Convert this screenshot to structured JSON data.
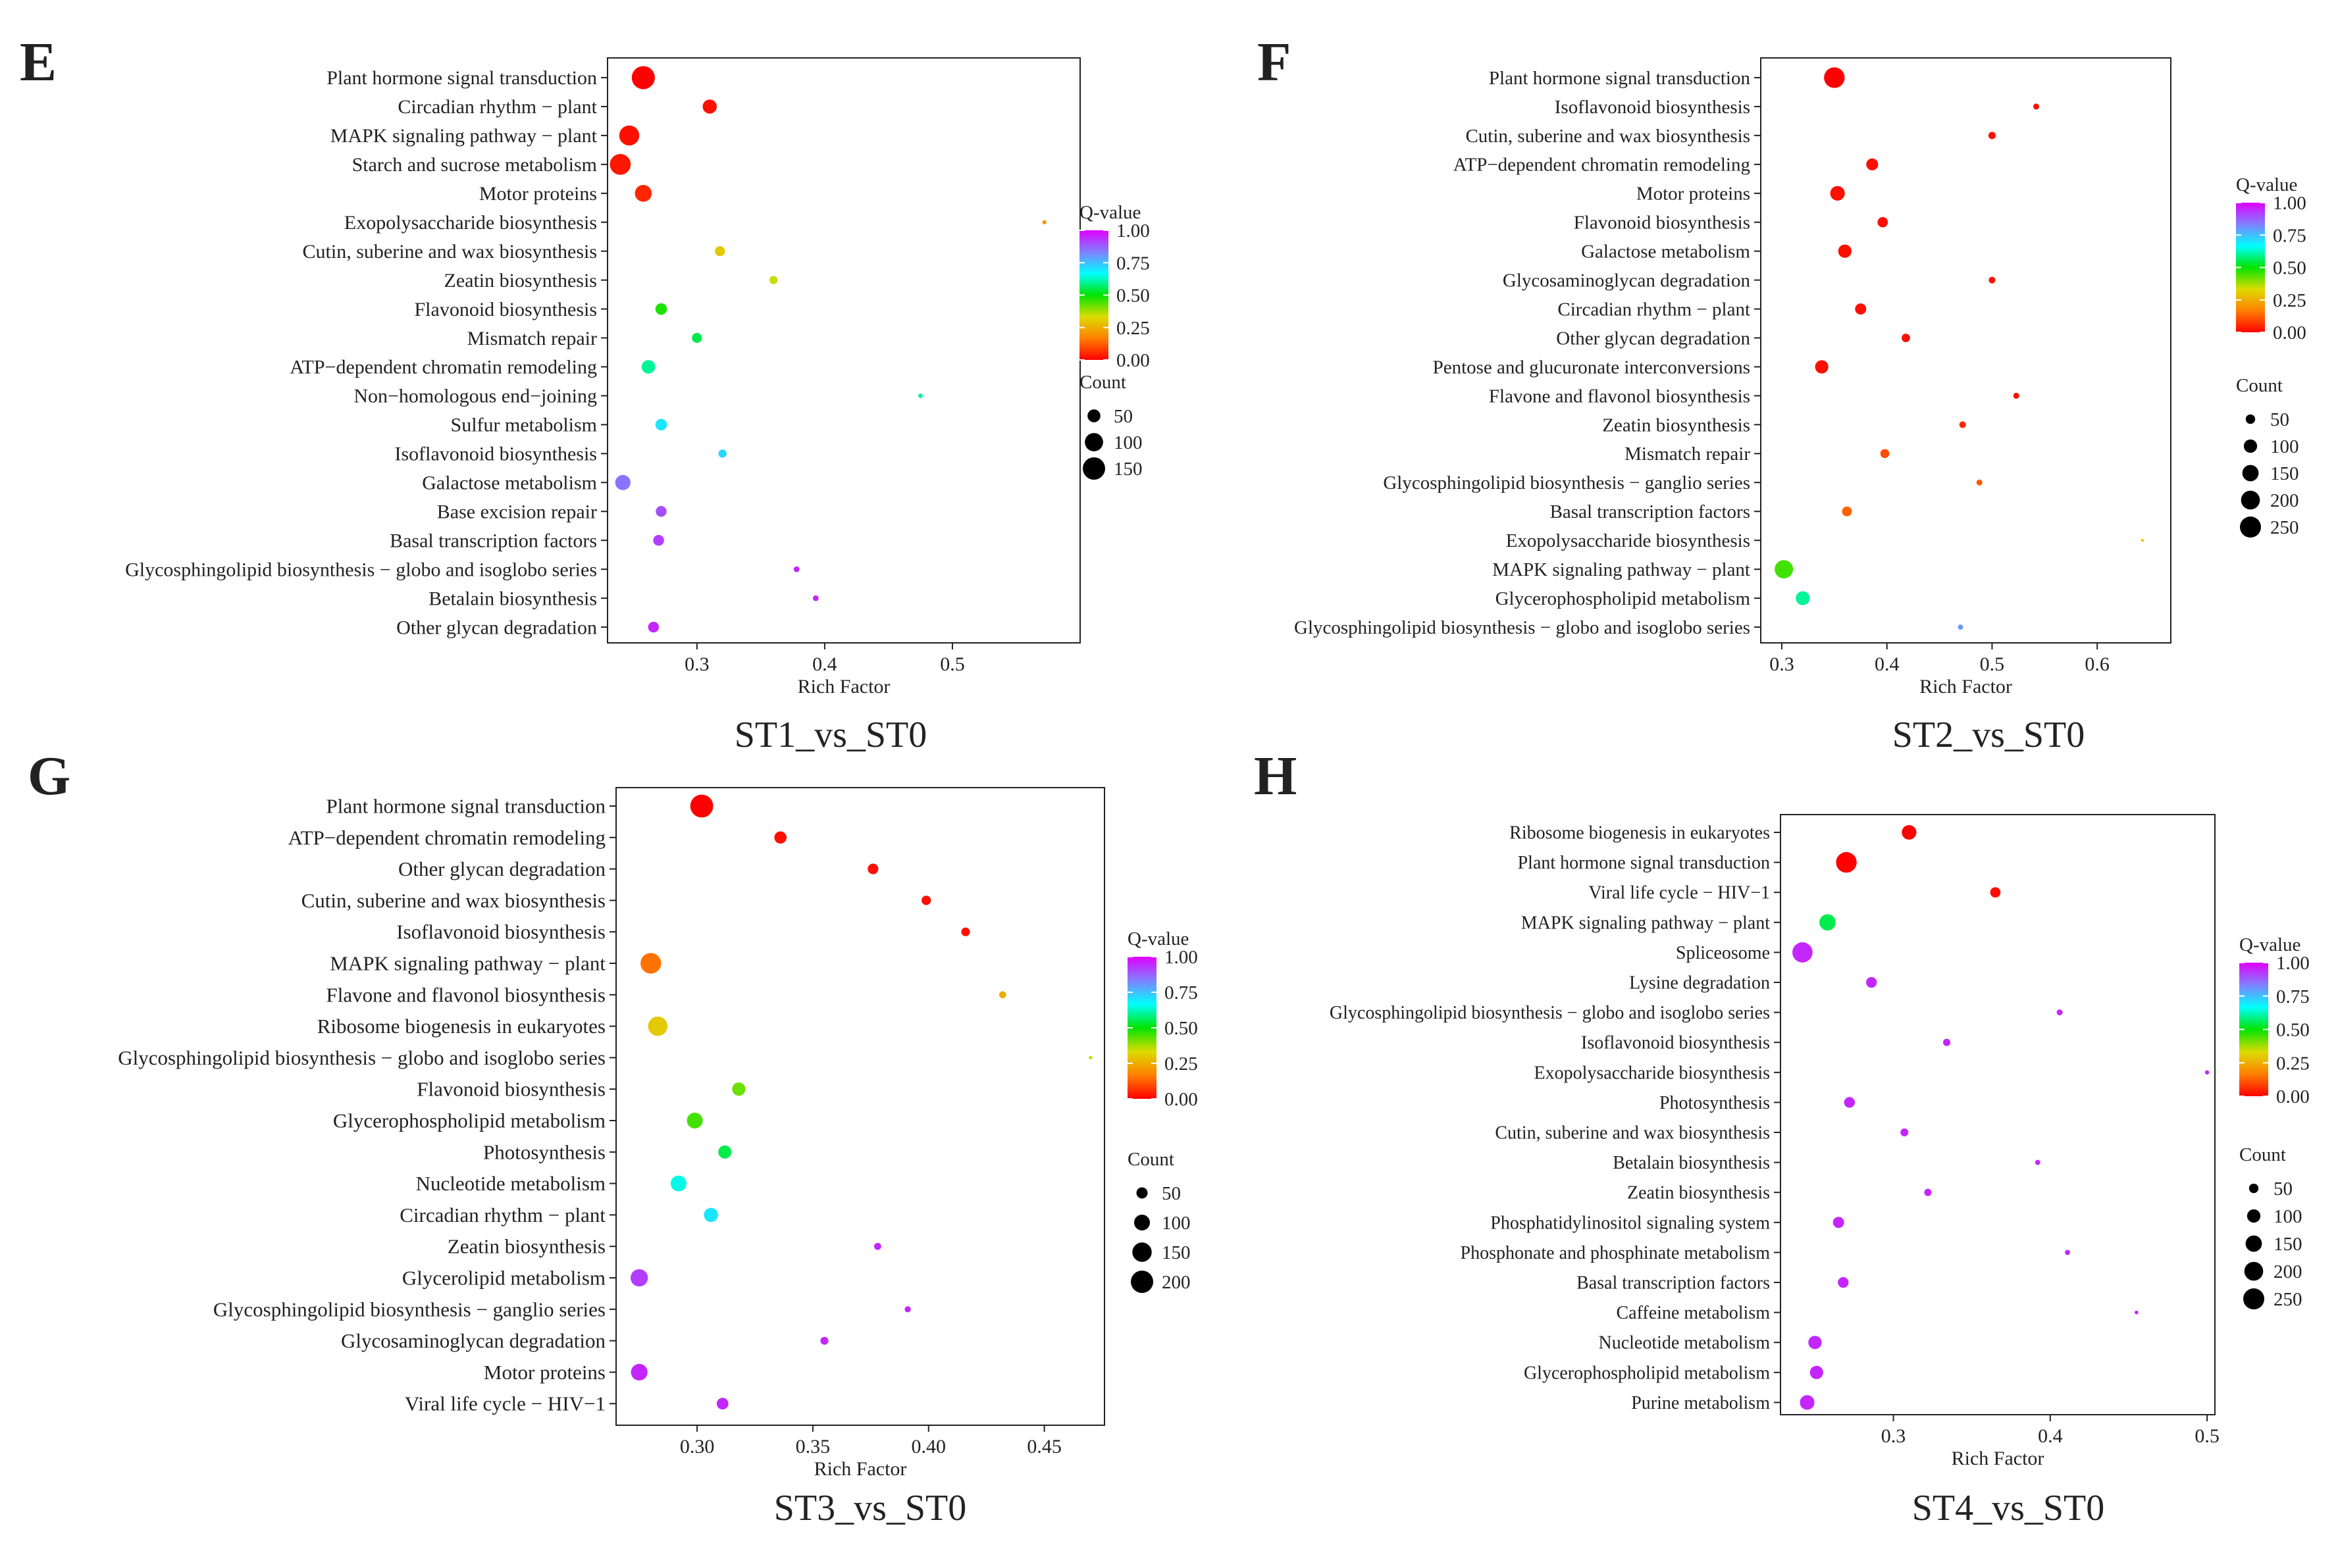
{
  "colors": {
    "scale": [
      "#ff0000",
      "#ff7f00",
      "#dcdc00",
      "#00e400",
      "#00ffff",
      "#8080ff",
      "#e000ff"
    ],
    "axis": "#222222",
    "background": "#ffffff"
  },
  "chart_data": [
    {
      "type": "scatter",
      "panel": "E",
      "title": "ST1_vs_ST0",
      "xlabel": "Rich Factor",
      "ylabel": "",
      "xlim": [
        0.23,
        0.6
      ],
      "xticks": [
        0.3,
        0.4,
        0.5
      ],
      "xtick_labels": [
        "0.3",
        "0.4",
        "0.5"
      ],
      "grid": false,
      "legend_position": "right",
      "color_legend": {
        "title": "Q-value",
        "min": 0,
        "max": 1,
        "ticks": [
          "1.00",
          "0.75",
          "0.50",
          "0.25",
          "0.00"
        ],
        "tick_values": [
          1.0,
          0.75,
          0.5,
          0.25,
          0.0
        ]
      },
      "size_legend": {
        "title": "Count",
        "labels": [
          "50",
          "100",
          "150"
        ],
        "values": [
          50,
          100,
          150
        ],
        "max_count": 150
      },
      "points": [
        {
          "term": "Plant hormone signal transduction",
          "rich_factor": 0.258,
          "q_value": 0.0,
          "count": 160
        },
        {
          "term": "Circadian rhythm − plant",
          "rich_factor": 0.31,
          "q_value": 0.02,
          "count": 60
        },
        {
          "term": "MAPK signaling pathway − plant",
          "rich_factor": 0.247,
          "q_value": 0.02,
          "count": 120
        },
        {
          "term": "Starch and sucrose metabolism",
          "rich_factor": 0.24,
          "q_value": 0.03,
          "count": 130
        },
        {
          "term": "Motor proteins",
          "rich_factor": 0.258,
          "q_value": 0.05,
          "count": 85
        },
        {
          "term": "Exopolysaccharide biosynthesis",
          "rich_factor": 0.572,
          "q_value": 0.2,
          "count": 5
        },
        {
          "term": "Cutin, suberine and wax biosynthesis",
          "rich_factor": 0.318,
          "q_value": 0.3,
          "count": 30
        },
        {
          "term": "Zeatin biosynthesis",
          "rich_factor": 0.36,
          "q_value": 0.35,
          "count": 20
        },
        {
          "term": "Flavonoid biosynthesis",
          "rich_factor": 0.272,
          "q_value": 0.48,
          "count": 40
        },
        {
          "term": "Mismatch repair",
          "rich_factor": 0.3,
          "q_value": 0.55,
          "count": 30
        },
        {
          "term": "ATP−dependent chromatin remodeling",
          "rich_factor": 0.262,
          "q_value": 0.6,
          "count": 55
        },
        {
          "term": "Non−homologous end−joining",
          "rich_factor": 0.475,
          "q_value": 0.6,
          "count": 6
        },
        {
          "term": "Sulfur metabolism",
          "rich_factor": 0.272,
          "q_value": 0.7,
          "count": 40
        },
        {
          "term": "Isoflavonoid biosynthesis",
          "rich_factor": 0.32,
          "q_value": 0.72,
          "count": 20
        },
        {
          "term": "Galactose metabolism",
          "rich_factor": 0.242,
          "q_value": 0.85,
          "count": 70
        },
        {
          "term": "Base excision repair",
          "rich_factor": 0.272,
          "q_value": 0.9,
          "count": 35
        },
        {
          "term": "Basal transcription factors",
          "rich_factor": 0.27,
          "q_value": 0.92,
          "count": 35
        },
        {
          "term": "Glycosphingolipid biosynthesis − globo and isoglobo series",
          "rich_factor": 0.378,
          "q_value": 0.95,
          "count": 10
        },
        {
          "term": "Betalain biosynthesis",
          "rich_factor": 0.393,
          "q_value": 0.95,
          "count": 10
        },
        {
          "term": "Other glycan degradation",
          "rich_factor": 0.266,
          "q_value": 0.95,
          "count": 35
        }
      ]
    },
    {
      "type": "scatter",
      "panel": "F",
      "title": "ST2_vs_ST0",
      "xlabel": "Rich Factor",
      "ylabel": "",
      "xlim": [
        0.28,
        0.67
      ],
      "xticks": [
        0.3,
        0.4,
        0.5,
        0.6
      ],
      "xtick_labels": [
        "0.3",
        "0.4",
        "0.5",
        "0.6"
      ],
      "grid": false,
      "legend_position": "right",
      "color_legend": {
        "title": "Q-value",
        "min": 0,
        "max": 1,
        "ticks": [
          "1.00",
          "0.75",
          "0.50",
          "0.25",
          "0.00"
        ],
        "tick_values": [
          1.0,
          0.75,
          0.5,
          0.25,
          0.0
        ]
      },
      "size_legend": {
        "title": "Count",
        "labels": [
          "50",
          "100",
          "150",
          "200",
          "250"
        ],
        "values": [
          50,
          100,
          150,
          200,
          250
        ],
        "max_count": 250
      },
      "points": [
        {
          "term": "Plant hormone signal transduction",
          "rich_factor": 0.35,
          "q_value": 0.0,
          "count": 240
        },
        {
          "term": "Isoflavonoid biosynthesis",
          "rich_factor": 0.542,
          "q_value": 0.02,
          "count": 20
        },
        {
          "term": "Cutin, suberine and wax biosynthesis",
          "rich_factor": 0.5,
          "q_value": 0.02,
          "count": 30
        },
        {
          "term": "ATP−dependent chromatin remodeling",
          "rich_factor": 0.386,
          "q_value": 0.02,
          "count": 80
        },
        {
          "term": "Motor proteins",
          "rich_factor": 0.353,
          "q_value": 0.02,
          "count": 120
        },
        {
          "term": "Flavonoid biosynthesis",
          "rich_factor": 0.396,
          "q_value": 0.02,
          "count": 60
        },
        {
          "term": "Galactose metabolism",
          "rich_factor": 0.36,
          "q_value": 0.02,
          "count": 100
        },
        {
          "term": "Glycosaminoglycan degradation",
          "rich_factor": 0.5,
          "q_value": 0.02,
          "count": 25
        },
        {
          "term": "Circadian rhythm − plant",
          "rich_factor": 0.375,
          "q_value": 0.02,
          "count": 70
        },
        {
          "term": "Other glycan degradation",
          "rich_factor": 0.418,
          "q_value": 0.02,
          "count": 40
        },
        {
          "term": "Pentose and glucuronate interconversions",
          "rich_factor": 0.338,
          "q_value": 0.02,
          "count": 100
        },
        {
          "term": "Flavone and flavonol biosynthesis",
          "rich_factor": 0.523,
          "q_value": 0.02,
          "count": 20
        },
        {
          "term": "Zeatin biosynthesis",
          "rich_factor": 0.472,
          "q_value": 0.05,
          "count": 25
        },
        {
          "term": "Mismatch repair",
          "rich_factor": 0.398,
          "q_value": 0.1,
          "count": 45
        },
        {
          "term": "Glycosphingolipid biosynthesis − ganglio series",
          "rich_factor": 0.488,
          "q_value": 0.12,
          "count": 20
        },
        {
          "term": "Basal transcription factors",
          "rich_factor": 0.362,
          "q_value": 0.13,
          "count": 55
        },
        {
          "term": "Exopolysaccharide biosynthesis",
          "rich_factor": 0.643,
          "q_value": 0.3,
          "count": 5
        },
        {
          "term": "MAPK signaling pathway − plant",
          "rich_factor": 0.302,
          "q_value": 0.45,
          "count": 190
        },
        {
          "term": "Glycerophospholipid metabolism",
          "rich_factor": 0.32,
          "q_value": 0.6,
          "count": 110
        },
        {
          "term": "Glycosphingolipid biosynthesis − globo and isoglobo series",
          "rich_factor": 0.47,
          "q_value": 0.8,
          "count": 15
        }
      ]
    },
    {
      "type": "scatter",
      "panel": "G",
      "title": "ST3_vs_ST0",
      "xlabel": "Rich Factor",
      "ylabel": "",
      "xlim": [
        0.265,
        0.476
      ],
      "xticks": [
        0.3,
        0.35,
        0.4,
        0.45
      ],
      "xtick_labels": [
        "0.30",
        "0.35",
        "0.40",
        "0.45"
      ],
      "grid": false,
      "legend_position": "right",
      "color_legend": {
        "title": "Q-value",
        "min": 0,
        "max": 1,
        "ticks": [
          "1.00",
          "0.75",
          "0.50",
          "0.25",
          "0.00"
        ],
        "tick_values": [
          1.0,
          0.75,
          0.5,
          0.25,
          0.0
        ]
      },
      "size_legend": {
        "title": "Count",
        "labels": [
          "50",
          "100",
          "150",
          "200"
        ],
        "values": [
          50,
          100,
          150,
          200
        ],
        "max_count": 200
      },
      "points": [
        {
          "term": "Plant hormone signal transduction",
          "rich_factor": 0.302,
          "q_value": 0.0,
          "count": 210
        },
        {
          "term": "ATP−dependent chromatin remodeling",
          "rich_factor": 0.336,
          "q_value": 0.02,
          "count": 60
        },
        {
          "term": "Other glycan degradation",
          "rich_factor": 0.376,
          "q_value": 0.02,
          "count": 45
        },
        {
          "term": "Cutin, suberine and wax biosynthesis",
          "rich_factor": 0.399,
          "q_value": 0.02,
          "count": 35
        },
        {
          "term": "Isoflavonoid biosynthesis",
          "rich_factor": 0.416,
          "q_value": 0.02,
          "count": 30
        },
        {
          "term": "MAPK signaling pathway − plant",
          "rich_factor": 0.28,
          "q_value": 0.15,
          "count": 170
        },
        {
          "term": "Flavone and flavonol biosynthesis",
          "rich_factor": 0.432,
          "q_value": 0.25,
          "count": 20
        },
        {
          "term": "Ribosome biogenesis in eukaryotes",
          "rich_factor": 0.283,
          "q_value": 0.3,
          "count": 150
        },
        {
          "term": "Glycosphingolipid biosynthesis − globo and isoglobo series",
          "rich_factor": 0.47,
          "q_value": 0.35,
          "count": 5
        },
        {
          "term": "Flavonoid biosynthesis",
          "rich_factor": 0.318,
          "q_value": 0.42,
          "count": 70
        },
        {
          "term": "Glycerophospholipid metabolism",
          "rich_factor": 0.299,
          "q_value": 0.45,
          "count": 100
        },
        {
          "term": "Photosynthesis",
          "rich_factor": 0.312,
          "q_value": 0.55,
          "count": 70
        },
        {
          "term": "Nucleotide metabolism",
          "rich_factor": 0.292,
          "q_value": 0.65,
          "count": 100
        },
        {
          "term": "Circadian rhythm − plant",
          "rich_factor": 0.306,
          "q_value": 0.7,
          "count": 80
        },
        {
          "term": "Zeatin biosynthesis",
          "rich_factor": 0.378,
          "q_value": 0.95,
          "count": 20
        },
        {
          "term": "Glycerolipid metabolism",
          "rich_factor": 0.275,
          "q_value": 0.92,
          "count": 120
        },
        {
          "term": "Glycosphingolipid biosynthesis − ganglio series",
          "rich_factor": 0.391,
          "q_value": 0.95,
          "count": 15
        },
        {
          "term": "Glycosaminoglycan degradation",
          "rich_factor": 0.355,
          "q_value": 0.95,
          "count": 25
        },
        {
          "term": "Motor proteins",
          "rich_factor": 0.275,
          "q_value": 0.95,
          "count": 110
        },
        {
          "term": "Viral life cycle − HIV−1",
          "rich_factor": 0.311,
          "q_value": 0.95,
          "count": 55
        }
      ]
    },
    {
      "type": "scatter",
      "panel": "H",
      "title": "ST4_vs_ST0",
      "xlabel": "Rich Factor",
      "ylabel": "",
      "xlim": [
        0.228,
        0.505
      ],
      "xticks": [
        0.3,
        0.4,
        0.5
      ],
      "xtick_labels": [
        "0.3",
        "0.4",
        "0.5"
      ],
      "grid": false,
      "legend_position": "right",
      "color_legend": {
        "title": "Q-value",
        "min": 0,
        "max": 1,
        "ticks": [
          "1.00",
          "0.75",
          "0.50",
          "0.25",
          "0.00"
        ],
        "tick_values": [
          1.0,
          0.75,
          0.5,
          0.25,
          0.0
        ]
      },
      "size_legend": {
        "title": "Count",
        "labels": [
          "50",
          "100",
          "150",
          "200",
          "250"
        ],
        "values": [
          50,
          100,
          150,
          200,
          250
        ],
        "max_count": 250
      },
      "points": [
        {
          "term": "Ribosome biogenesis in eukaryotes",
          "rich_factor": 0.31,
          "q_value": 0.0,
          "count": 120
        },
        {
          "term": "Plant hormone signal transduction",
          "rich_factor": 0.27,
          "q_value": 0.0,
          "count": 240
        },
        {
          "term": "Viral life cycle − HIV−1",
          "rich_factor": 0.365,
          "q_value": 0.02,
          "count": 60
        },
        {
          "term": "MAPK signaling pathway − plant",
          "rich_factor": 0.258,
          "q_value": 0.55,
          "count": 150
        },
        {
          "term": "Spliceosome",
          "rich_factor": 0.242,
          "q_value": 0.95,
          "count": 230
        },
        {
          "term": "Lysine degradation",
          "rich_factor": 0.286,
          "q_value": 0.95,
          "count": 65
        },
        {
          "term": "Glycosphingolipid biosynthesis − globo and isoglobo series",
          "rich_factor": 0.406,
          "q_value": 0.95,
          "count": 20
        },
        {
          "term": "Isoflavonoid biosynthesis",
          "rich_factor": 0.334,
          "q_value": 0.95,
          "count": 30
        },
        {
          "term": "Exopolysaccharide biosynthesis",
          "rich_factor": 0.5,
          "q_value": 0.95,
          "count": 10
        },
        {
          "term": "Photosynthesis",
          "rich_factor": 0.272,
          "q_value": 0.95,
          "count": 65
        },
        {
          "term": "Cutin, suberine and wax biosynthesis",
          "rich_factor": 0.307,
          "q_value": 0.95,
          "count": 35
        },
        {
          "term": "Betalain biosynthesis",
          "rich_factor": 0.392,
          "q_value": 0.95,
          "count": 15
        },
        {
          "term": "Zeatin biosynthesis",
          "rich_factor": 0.322,
          "q_value": 0.95,
          "count": 30
        },
        {
          "term": "Phosphatidylinositol signaling system",
          "rich_factor": 0.265,
          "q_value": 0.95,
          "count": 70
        },
        {
          "term": "Phosphonate and phosphinate metabolism",
          "rich_factor": 0.411,
          "q_value": 0.95,
          "count": 15
        },
        {
          "term": "Basal transcription factors",
          "rich_factor": 0.268,
          "q_value": 0.95,
          "count": 65
        },
        {
          "term": "Caffeine metabolism",
          "rich_factor": 0.455,
          "q_value": 0.95,
          "count": 8
        },
        {
          "term": "Nucleotide metabolism",
          "rich_factor": 0.25,
          "q_value": 0.95,
          "count": 100
        },
        {
          "term": "Glycerophospholipid metabolism",
          "rich_factor": 0.251,
          "q_value": 0.95,
          "count": 100
        },
        {
          "term": "Purine metabolism",
          "rich_factor": 0.245,
          "q_value": 0.95,
          "count": 120
        }
      ]
    }
  ]
}
